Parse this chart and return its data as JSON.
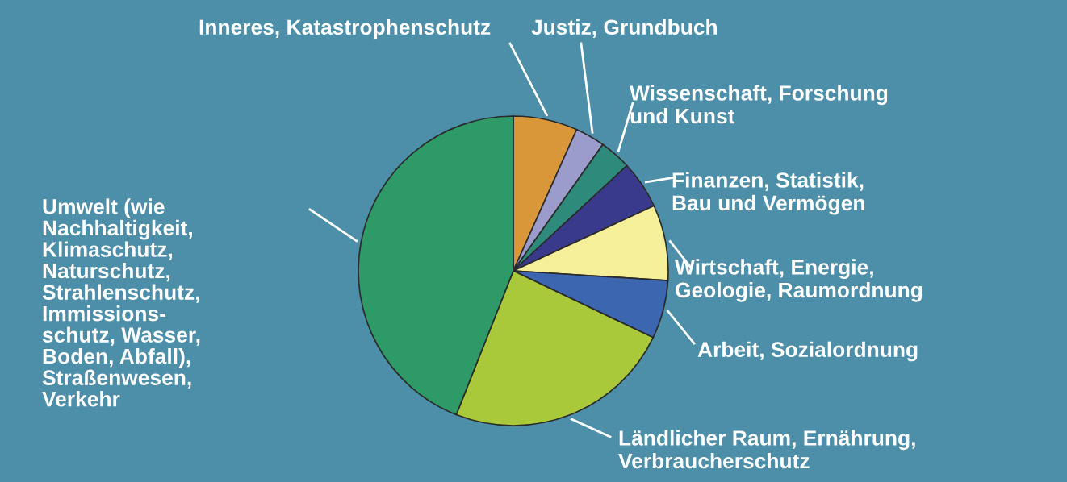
{
  "chart_data": {
    "type": "pie",
    "categories": [
      "Inneres, Katastrophenschutz",
      "Justiz, Grundbuch",
      "Wissenschaft, Forschung\nund Kunst",
      "Finanzen, Statistik,\nBau und Vermögen",
      "Wirtschaft, Energie,\nGeologie, Raumordnung",
      "Arbeit, Sozialordnung",
      "Ländlicher Raum, Ernährung,\nVerbraucherschutz",
      "Umwelt (wie\nNachhaltigkeit,\nKlimaschutz,\nNaturschutz,\nStrahlenschutz,\nImmissions-\nschutz, Wasser,\nBoden, Abfall),\nStraßenwesen,\nVerkehr"
    ],
    "values": [
      6.7,
      3.1,
      3.3,
      5.0,
      7.9,
      6.1,
      23.9,
      44.0
    ],
    "colors": [
      "#d9973a",
      "#9b9bcc",
      "#2e8a7a",
      "#3a3a8c",
      "#f5ef9a",
      "#3d66b0",
      "#a9c93a",
      "#2e9a68"
    ]
  }
}
